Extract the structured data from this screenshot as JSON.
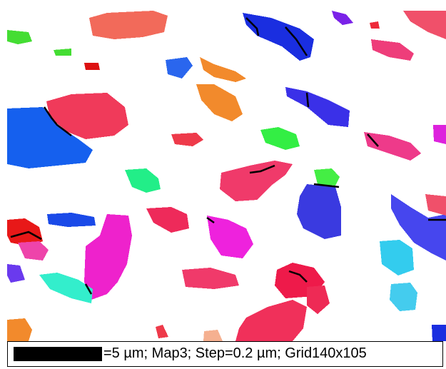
{
  "caption": "=5 µm; Map3; Step=0.2 µm; Grid140x105"
}
